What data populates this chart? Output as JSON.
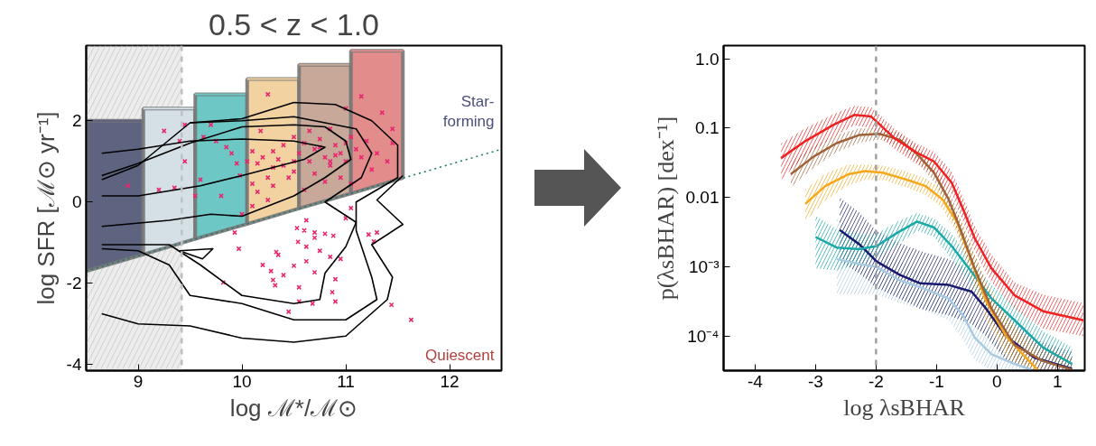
{
  "chart_data": [
    {
      "type": "scatter",
      "title": "0.5 < z < 1.0",
      "xlabel": "log ℳ*/ℳ⊙",
      "ylabel": "log SFR [ℳ⊙ yr⁻¹]",
      "xlim": [
        8.5,
        12.5
      ],
      "ylim": [
        -4.15,
        3.85
      ],
      "xticks": [
        9,
        10,
        11,
        12
      ],
      "yticks": [
        -4,
        -2,
        0,
        2
      ],
      "grid": false,
      "annotations": [
        "Star-\nforming",
        "Quiescent"
      ],
      "bands": [
        {
          "axis": "x",
          "from": 8.5,
          "to": 9.42,
          "color": "#c8c8c8"
        }
      ],
      "ref_lines": [
        {
          "axis": "x",
          "value": 9.42,
          "color": "#c0c0c0",
          "line_style": "dashed"
        }
      ],
      "series": [
        {
          "type": "line",
          "color": "#5e6380",
          "x": [
            8.5,
            9.05
          ],
          "values": [
            2.0,
            2.0
          ],
          "upper": [
            2.0,
            2.0
          ],
          "lower": [
            -1.7,
            -1.29
          ]
        },
        {
          "type": "line",
          "color": "#d4e0e6",
          "x": [
            9.05,
            9.55
          ],
          "values": [
            2.3,
            2.3
          ],
          "upper": [
            2.3,
            2.3
          ],
          "lower": [
            -1.29,
            -0.91
          ]
        },
        {
          "type": "line",
          "color": "#6dc7c4",
          "x": [
            9.55,
            10.05
          ],
          "values": [
            2.65,
            2.65
          ],
          "upper": [
            2.65,
            2.65
          ],
          "lower": [
            -0.91,
            -0.54
          ]
        },
        {
          "type": "line",
          "color": "#f2d2a0",
          "x": [
            10.05,
            10.55
          ],
          "values": [
            3.03,
            3.03
          ],
          "upper": [
            3.03,
            3.03
          ],
          "lower": [
            -0.54,
            -0.16
          ]
        },
        {
          "type": "line",
          "color": "#c8a898",
          "x": [
            10.55,
            11.05
          ],
          "values": [
            3.38,
            3.38
          ],
          "upper": [
            3.38,
            3.38
          ],
          "lower": [
            -0.16,
            0.21
          ]
        },
        {
          "type": "line",
          "color": "#e38c8c",
          "x": [
            11.05,
            11.55
          ],
          "values": [
            3.72,
            3.72
          ],
          "upper": [
            3.72,
            3.72
          ],
          "lower": [
            0.21,
            0.59
          ]
        },
        {
          "type": "line",
          "color": "#1e7a6e",
          "line_style": "dotted",
          "x": [
            8.5,
            12.5
          ],
          "values": [
            -1.7,
            1.3
          ]
        },
        {
          "type": "line",
          "color": "#000000",
          "x": [
            8.65,
            9.0,
            9.5,
            10.0,
            10.5,
            10.8,
            10.6,
            10.3,
            10.0,
            9.6,
            9.0,
            8.65
          ],
          "values": [
            1.2,
            1.3,
            1.5,
            1.55,
            1.5,
            1.35,
            1.05,
            0.85,
            0.65,
            0.4,
            0.15,
            0.15
          ]
        },
        {
          "type": "line",
          "color": "#000000",
          "x": [
            8.65,
            9.0,
            9.5,
            10.0,
            10.5,
            10.8,
            11.0,
            11.05,
            10.8,
            10.5,
            10.0,
            9.7,
            9.3,
            8.65
          ],
          "values": [
            0.65,
            0.95,
            1.45,
            1.85,
            1.9,
            1.85,
            1.5,
            1.05,
            0.6,
            0.15,
            -0.35,
            -0.3,
            -0.45,
            -0.6
          ]
        },
        {
          "type": "line",
          "color": "#000000",
          "x": [
            8.65,
            9.0,
            9.5,
            10.0,
            10.5,
            10.8,
            11.1,
            11.25,
            11.15,
            10.8,
            11.1,
            11.0,
            10.8,
            10.75,
            10.5,
            10.0,
            9.6,
            9.3,
            8.65
          ],
          "values": [
            0.55,
            0.9,
            1.95,
            2.0,
            2.1,
            1.95,
            1.8,
            1.2,
            0.6,
            0.0,
            -0.5,
            -1.1,
            -1.75,
            -2.4,
            -2.5,
            -2.3,
            -1.55,
            -1.05,
            -1.05
          ]
        },
        {
          "type": "line",
          "color": "#000000",
          "x": [
            8.65,
            9.0,
            9.3,
            9.5,
            10.0,
            10.5,
            11.0,
            11.3,
            11.25,
            11.1,
            11.1,
            11.5,
            11.5,
            11.25,
            10.9,
            10.5,
            10.0,
            9.5
          ],
          "values": [
            -1.15,
            -1.2,
            -1.55,
            -2.3,
            -2.5,
            -2.9,
            -2.9,
            -2.4,
            -1.85,
            -0.7,
            0.0,
            0.6,
            1.4,
            2.0,
            2.4,
            2.45,
            2.05,
            1.95
          ]
        },
        {
          "type": "line",
          "color": "#000000",
          "x": [
            8.65,
            9.0,
            9.5,
            10.0,
            10.5,
            11.0,
            11.4,
            11.45,
            11.25,
            11.55,
            11.3,
            11.55
          ],
          "values": [
            -2.75,
            -3.0,
            -3.05,
            -3.35,
            -3.45,
            -3.3,
            -2.4,
            -1.85,
            -1.05,
            -0.55,
            0.05,
            0.65
          ]
        },
        {
          "type": "line",
          "color": "#000000",
          "x": [
            9.4,
            9.72,
            9.62,
            9.42
          ],
          "values": [
            -1.2,
            -1.15,
            -1.4,
            -1.22
          ]
        },
        {
          "type": "scatter",
          "color": "#e8256e",
          "marker": "cross",
          "x": [
            10.53,
            10.62,
            10.6,
            10.7,
            10.8,
            10.54,
            10.62,
            10.75,
            10.85,
            10.95,
            10.88,
            11.0,
            10.33,
            10.35,
            10.2,
            10.28,
            10.4,
            10.5,
            10.62,
            10.7,
            10.3,
            10.32,
            9.82,
            10.55,
            10.55,
            10.68,
            10.45,
            10.87,
            10.9,
            10.9,
            11.22,
            11.3,
            11.27,
            11.44,
            11.63,
            10.7,
            11.05,
            9.97,
            9.93,
            10.25,
            10.18,
            10.05,
            10.1,
            10.15,
            10.2,
            10.3,
            10.35,
            10.4,
            10.25,
            10.1,
            10.15,
            10.3,
            10.45,
            10.5,
            10.55,
            10.6,
            10.65,
            10.7,
            10.75,
            10.8,
            10.85,
            10.9,
            10.95,
            11.0,
            11.05,
            10.7,
            10.8,
            10.6,
            11.1,
            11.15,
            11.2,
            11.25,
            11.3,
            11.15,
            11.35,
            11.45,
            11.4,
            11.0,
            10.85,
            10.5,
            10.4,
            10.3,
            9.75,
            9.85,
            9.9,
            9.7,
            9.63,
            9.6,
            9.8,
            9.98,
            9.95,
            9.4,
            9.45,
            9.35,
            9.2,
            8.9,
            9.25,
            9.45,
            9.55,
            10.0,
            10.1,
            10.25,
            10.95,
            11.05,
            11.45,
            10.65,
            10.5,
            10.9,
            10.75,
            10.85,
            11.0
          ],
          "values": [
            -0.64,
            -0.45,
            -0.7,
            -0.75,
            -0.78,
            -0.98,
            -1.1,
            -1.2,
            -1.35,
            -1.4,
            -0.83,
            -0.4,
            -1.23,
            -1.3,
            -1.55,
            -1.7,
            -1.8,
            -1.57,
            -1.46,
            -1.73,
            -1.92,
            -2.05,
            -1.98,
            -2.1,
            -2.45,
            -2.5,
            -2.7,
            -2.22,
            -2.45,
            -1.9,
            -0.8,
            -0.75,
            -0.97,
            -2.53,
            -2.9,
            -0.88,
            -0.15,
            -1.15,
            -0.75,
            2.65,
            1.75,
            1.0,
            1.25,
            0.95,
            1.1,
            1.25,
            1.05,
            0.9,
            0.6,
            0.45,
            0.25,
            0.4,
            0.6,
            0.75,
            1.2,
            1.45,
            1.0,
            1.3,
            1.55,
            1.1,
            0.9,
            1.4,
            1.2,
            1.0,
            1.6,
            0.7,
            0.5,
            0.3,
            1.3,
            1.1,
            1.5,
            0.8,
            1.2,
            2.6,
            2.2,
            1.8,
            1.0,
            2.3,
            1.8,
            1.0,
            1.4,
            0.85,
            1.5,
            1.35,
            1.2,
            1.9,
            1.6,
            0.55,
            0.15,
            0.65,
            0.95,
            1.5,
            1.0,
            0.35,
            0.3,
            0.4,
            1.75,
            1.9,
            0.15,
            -0.3,
            -0.1,
            0.05,
            0.6,
            0.45,
            1.45,
            1.75,
            1.6,
            1.15,
            1.35,
            1.0,
            1.45
          ]
        }
      ]
    },
    {
      "type": "line",
      "xlabel": "log λsBHAR",
      "ylabel": "p(λsBHAR) [dex⁻¹]",
      "log": "y",
      "xlim": [
        -4.52,
        1.45
      ],
      "ylim": [
        3.2e-05,
        1.55
      ],
      "xticks": [
        -4,
        -3,
        -2,
        -1,
        0,
        1
      ],
      "yticks": [
        {
          "value": 1.0,
          "label": "1.0"
        },
        0.1,
        0.01,
        {
          "value": 0.001,
          "label": "10⁻³"
        },
        {
          "value": 0.0001,
          "label": "10⁻⁴"
        }
      ],
      "grid": false,
      "ref_lines": [
        {
          "axis": "x",
          "value": -2,
          "color": "#a0a0a0",
          "line_style": "dashed"
        }
      ],
      "series": [
        {
          "color": "#a8cbe0",
          "x": [
            -2.65,
            -2.27,
            -1.99,
            -1.61,
            -1.27,
            -0.8,
            -0.56,
            -0.37,
            -0.09,
            0.29,
            0.57
          ],
          "values": [
            0.0013,
            0.0011,
            0.001,
            0.00064,
            0.00051,
            0.00035,
            0.0002,
            9.6e-05,
            5.5e-05,
            4e-05,
            3.3e-05
          ],
          "upper": [
            0.005,
            0.003,
            0.002,
            0.0012,
            0.0009,
            0.0006,
            0.00035,
            0.00018,
            0.0001,
            7e-05,
            5e-05
          ],
          "lower": [
            0.0004,
            0.0004,
            0.0004,
            0.0003,
            0.00025,
            0.00017,
            9e-05,
            4.5e-05,
            3.2e-05,
            3.2e-05,
            3.2e-05
          ]
        },
        {
          "color": "#1a1a6e",
          "x": [
            -2.6,
            -2.27,
            -1.99,
            -1.61,
            -1.27,
            -0.8,
            -0.42,
            -0.18,
            0.15,
            0.62,
            1.24
          ],
          "values": [
            0.0034,
            0.0021,
            0.0012,
            0.00077,
            0.00058,
            0.00055,
            0.00044,
            0.00025,
            0.0001,
            4.9e-05,
            3.4e-05
          ],
          "upper": [
            0.01,
            0.006,
            0.0033,
            0.0022,
            0.0017,
            0.0013,
            0.0009,
            0.0005,
            0.0002,
            9e-05,
            6e-05
          ],
          "lower": [
            0.0012,
            0.0008,
            0.0005,
            0.00035,
            0.00025,
            0.0002,
            0.00015,
            0.0001,
            4.5e-05,
            3.2e-05,
            3.2e-05
          ]
        },
        {
          "color": "#1aa8a8",
          "x": [
            -3.0,
            -2.65,
            -2.27,
            -1.99,
            -1.65,
            -1.32,
            -1.04,
            -0.75,
            -0.42,
            -0.09,
            0.29,
            0.76,
            1.24
          ],
          "values": [
            0.0027,
            0.0019,
            0.0018,
            0.002,
            0.0031,
            0.0045,
            0.0037,
            0.002,
            0.00085,
            0.00035,
            0.00017,
            6.9e-05,
            4e-05
          ],
          "upper": [
            0.0055,
            0.0035,
            0.003,
            0.003,
            0.0045,
            0.006,
            0.005,
            0.003,
            0.0013,
            0.00055,
            0.00028,
            0.00012,
            7e-05
          ],
          "lower": [
            0.00095,
            0.0009,
            0.0011,
            0.0014,
            0.0021,
            0.0033,
            0.0027,
            0.0013,
            0.00055,
            0.0002,
            0.0001,
            4e-05,
            3.2e-05
          ]
        },
        {
          "color": "#f5a81c",
          "x": [
            -3.17,
            -2.84,
            -2.46,
            -2.18,
            -1.89,
            -1.51,
            -1.18,
            -0.9,
            -0.66,
            -0.42,
            -0.18,
            0.15,
            0.53,
            0.67
          ],
          "values": [
            0.0081,
            0.0146,
            0.0216,
            0.024,
            0.0228,
            0.0183,
            0.0146,
            0.0094,
            0.0044,
            0.0012,
            0.00032,
            0.0001,
            4.4e-05,
            3.3e-05
          ],
          "upper": [
            0.013,
            0.022,
            0.03,
            0.03,
            0.029,
            0.024,
            0.019,
            0.013,
            0.0065,
            0.002,
            0.0006,
            0.0002,
            8e-05,
            6e-05
          ],
          "lower": [
            0.0045,
            0.009,
            0.015,
            0.018,
            0.018,
            0.014,
            0.011,
            0.007,
            0.003,
            0.0007,
            0.00017,
            5e-05,
            3.2e-05,
            3.2e-05
          ]
        },
        {
          "color": "#a0623a",
          "x": [
            -3.41,
            -3.03,
            -2.65,
            -2.27,
            -1.94,
            -1.61,
            -1.32,
            -1.04,
            -0.8,
            -0.61,
            -0.37,
            -0.09,
            0.29,
            0.76,
            1.24
          ],
          "values": [
            0.0216,
            0.039,
            0.061,
            0.08,
            0.083,
            0.068,
            0.042,
            0.0228,
            0.0094,
            0.0036,
            0.00095,
            0.00025,
            7.5e-05,
            4.4e-05,
            3.3e-05
          ],
          "upper": [
            0.033,
            0.055,
            0.08,
            0.1,
            0.1,
            0.085,
            0.055,
            0.03,
            0.013,
            0.005,
            0.0015,
            0.0004,
            0.00013,
            7e-05,
            5e-05
          ],
          "lower": [
            0.014,
            0.027,
            0.045,
            0.062,
            0.068,
            0.055,
            0.032,
            0.017,
            0.0068,
            0.0025,
            0.0006,
            0.00015,
            4.5e-05,
            3.3e-05,
            3.2e-05
          ]
        },
        {
          "color": "#ee2222",
          "x": [
            -3.57,
            -3.17,
            -2.7,
            -2.36,
            -2.08,
            -1.7,
            -1.32,
            -1.04,
            -0.75,
            -0.56,
            -0.37,
            -0.09,
            0.29,
            0.76,
            1.43
          ],
          "values": [
            0.037,
            0.065,
            0.112,
            0.155,
            0.147,
            0.072,
            0.044,
            0.033,
            0.0164,
            0.0068,
            0.0026,
            0.00095,
            0.00039,
            0.00023,
            0.00017
          ],
          "upper": [
            0.06,
            0.1,
            0.16,
            0.21,
            0.2,
            0.1,
            0.06,
            0.046,
            0.024,
            0.01,
            0.0039,
            0.0015,
            0.0006,
            0.0004,
            0.0003
          ],
          "lower": [
            0.018,
            0.04,
            0.075,
            0.11,
            0.1,
            0.05,
            0.03,
            0.022,
            0.011,
            0.0045,
            0.0017,
            0.0006,
            0.00025,
            0.00013,
            0.0001
          ]
        }
      ]
    }
  ]
}
